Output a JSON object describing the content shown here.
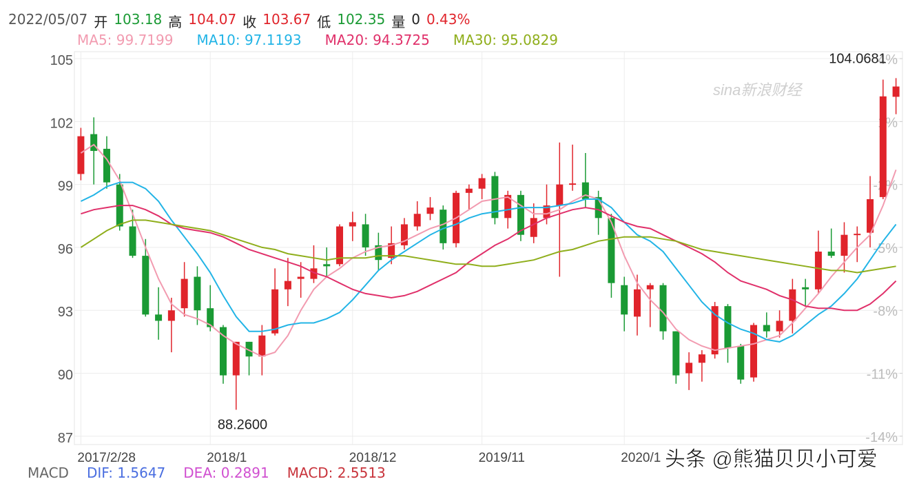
{
  "chart_data": {
    "type": "candlestick",
    "header": [
      {
        "text": "2022/05/07",
        "color": "#555555"
      },
      {
        "text": "开",
        "color": "#222222"
      },
      {
        "text": "103.18",
        "color": "#1a9a34"
      },
      {
        "text": "高",
        "color": "#222222"
      },
      {
        "text": "104.07",
        "color": "#e0242b"
      },
      {
        "text": "收",
        "color": "#222222"
      },
      {
        "text": "103.67",
        "color": "#e0242b"
      },
      {
        "text": "低",
        "color": "#222222"
      },
      {
        "text": "102.35",
        "color": "#1a9a34"
      },
      {
        "text": "量",
        "color": "#222222"
      },
      {
        "text": "0",
        "color": "#222222"
      },
      {
        "text": "0.43%",
        "color": "#e0242b"
      }
    ],
    "categories": [
      "2017/2/28",
      null,
      null,
      null,
      null,
      null,
      null,
      null,
      null,
      null,
      "2018/1",
      null,
      null,
      null,
      null,
      null,
      null,
      null,
      null,
      null,
      null,
      "2018/12",
      null,
      null,
      null,
      null,
      null,
      null,
      null,
      null,
      null,
      "2019/11",
      null,
      null,
      null,
      null,
      null,
      null,
      null,
      null,
      null,
      null,
      "2020/1",
      null,
      null,
      null,
      null,
      null,
      null,
      null,
      null,
      null,
      null,
      null,
      null,
      null,
      null,
      null,
      null,
      null,
      null,
      null,
      null,
      null
    ],
    "up_color": "#e0242b",
    "down_color": "#1a9a34",
    "open": [
      99.5,
      101.4,
      100.7,
      99.0,
      97.0,
      95.6,
      92.8,
      92.5,
      93.1,
      94.6,
      93.1,
      92.2,
      89.9,
      91.5,
      90.8,
      91.9,
      94.0,
      94.5,
      94.5,
      95.2,
      95.2,
      97.0,
      97.1,
      96.1,
      95.5,
      96.1,
      97.0,
      97.6,
      97.8,
      96.2,
      98.6,
      98.8,
      99.4,
      97.4,
      98.5,
      96.5,
      97.4,
      98.0,
      99.0,
      99.1,
      98.4,
      97.4,
      94.2,
      92.7,
      94.0,
      94.2,
      92.0,
      90.0,
      90.5,
      90.9,
      93.2,
      91.3,
      89.8,
      92.3,
      92.0,
      92.5,
      94.1,
      94.0,
      95.8,
      95.6,
      96.6,
      96.7,
      98.4,
      103.18
    ],
    "high": [
      101.7,
      102.2,
      101.3,
      99.5,
      97.8,
      96.4,
      94.1,
      93.6,
      95.3,
      95.1,
      94.2,
      92.3,
      91.5,
      91.5,
      92.3,
      95.0,
      95.5,
      95.3,
      96.1,
      96.0,
      97.1,
      97.7,
      97.6,
      96.7,
      97.0,
      97.4,
      98.2,
      98.4,
      98.0,
      98.7,
      99.0,
      99.5,
      99.6,
      98.7,
      98.7,
      98.1,
      99.0,
      101.0,
      100.9,
      100.5,
      98.7,
      97.6,
      94.6,
      94.7,
      94.3,
      94.3,
      92.0,
      91.0,
      91.1,
      93.4,
      93.3,
      91.4,
      92.4,
      92.9,
      93.0,
      94.5,
      94.5,
      96.8,
      96.9,
      97.2,
      97.0,
      99.4,
      104.0,
      104.07
    ],
    "low": [
      99.2,
      99.0,
      98.8,
      96.8,
      95.5,
      92.7,
      91.6,
      91.0,
      92.7,
      92.3,
      92.0,
      89.5,
      88.26,
      89.9,
      89.9,
      91.8,
      93.2,
      93.6,
      94.3,
      94.6,
      95.1,
      96.3,
      95.6,
      94.9,
      95.2,
      95.9,
      96.8,
      97.3,
      95.9,
      96.0,
      97.8,
      98.3,
      97.1,
      96.9,
      96.3,
      96.2,
      97.1,
      94.6,
      98.7,
      97.9,
      96.6,
      93.6,
      92.0,
      91.8,
      92.2,
      91.6,
      89.5,
      89.2,
      89.6,
      90.7,
      90.5,
      89.5,
      89.6,
      91.7,
      91.7,
      91.9,
      93.2,
      93.8,
      95.5,
      94.8,
      95.3,
      96.0,
      98.3,
      102.35
    ],
    "close": [
      101.3,
      100.6,
      99.1,
      97.0,
      95.6,
      92.8,
      92.5,
      93.0,
      94.5,
      93.0,
      92.2,
      89.9,
      91.5,
      90.8,
      91.8,
      94.0,
      94.4,
      94.6,
      95.0,
      95.1,
      97.0,
      97.2,
      96.0,
      95.4,
      96.2,
      97.1,
      97.6,
      97.9,
      96.2,
      98.6,
      98.8,
      99.3,
      97.4,
      98.5,
      96.6,
      97.4,
      98.0,
      99.0,
      99.05,
      98.3,
      97.4,
      94.3,
      92.8,
      94.0,
      94.2,
      92.0,
      89.9,
      90.5,
      90.9,
      93.2,
      91.2,
      89.7,
      92.3,
      92.0,
      92.5,
      94.0,
      94.0,
      95.8,
      95.6,
      96.6,
      96.65,
      98.3,
      103.2,
      103.67
    ],
    "series": [
      {
        "name": "MA5: 99.7199",
        "color": "#f29bb0",
        "values": [
          100.5,
          100.9,
          100.2,
          99.2,
          97.6,
          96.0,
          94.5,
          93.3,
          92.8,
          92.6,
          92.3,
          91.8,
          91.4,
          91.1,
          90.8,
          91.0,
          91.8,
          93.0,
          94.0,
          94.6,
          95.0,
          95.5,
          95.8,
          96.0,
          96.1,
          96.3,
          96.6,
          96.9,
          97.1,
          97.4,
          97.8,
          98.2,
          98.3,
          98.4,
          98.0,
          97.6,
          97.6,
          97.8,
          98.2,
          98.5,
          98.3,
          97.2,
          95.6,
          94.3,
          93.5,
          92.9,
          92.1,
          91.6,
          91.3,
          91.1,
          91.2,
          91.3,
          91.4,
          91.6,
          91.8,
          92.4,
          93.1,
          93.8,
          94.6,
          95.3,
          96.0,
          96.6,
          98.0,
          99.7
        ]
      },
      {
        "name": "MA10: 97.1193",
        "color": "#22b4e6",
        "values": [
          98.2,
          98.5,
          98.9,
          99.1,
          99.1,
          98.8,
          98.2,
          97.3,
          96.5,
          95.7,
          94.8,
          93.7,
          92.7,
          92.0,
          92.0,
          92.1,
          92.3,
          92.4,
          92.4,
          92.6,
          92.9,
          93.5,
          94.2,
          94.9,
          95.4,
          95.8,
          96.2,
          96.6,
          96.9,
          97.1,
          97.4,
          97.6,
          97.7,
          97.8,
          97.9,
          97.9,
          97.9,
          98.0,
          98.1,
          98.3,
          98.3,
          97.9,
          97.2,
          96.6,
          96.3,
          95.8,
          95.0,
          94.2,
          93.4,
          92.8,
          92.4,
          92.1,
          91.9,
          91.6,
          91.5,
          91.8,
          92.3,
          92.8,
          93.2,
          93.8,
          94.5,
          95.4,
          96.3,
          97.1
        ]
      },
      {
        "name": "MA20: 94.3725",
        "color": "#e0306a",
        "values": [
          97.6,
          97.8,
          97.9,
          98.0,
          98.0,
          97.8,
          97.5,
          97.1,
          96.9,
          96.8,
          96.7,
          96.5,
          96.2,
          95.9,
          95.7,
          95.5,
          95.3,
          95.1,
          94.8,
          94.6,
          94.3,
          94.0,
          93.8,
          93.7,
          93.6,
          93.7,
          93.9,
          94.2,
          94.5,
          94.8,
          95.3,
          95.7,
          96.1,
          96.4,
          96.8,
          97.1,
          97.4,
          97.6,
          97.8,
          97.9,
          97.8,
          97.5,
          97.2,
          97.0,
          96.9,
          96.6,
          96.3,
          96.0,
          95.7,
          95.3,
          94.8,
          94.4,
          94.2,
          94.0,
          93.7,
          93.5,
          93.2,
          93.1,
          93.1,
          93.0,
          93.0,
          93.3,
          93.8,
          94.4
        ]
      },
      {
        "name": "MA30: 95.0829",
        "color": "#8fae1b",
        "values": [
          96.0,
          96.4,
          96.8,
          97.1,
          97.3,
          97.3,
          97.2,
          97.1,
          97.0,
          96.9,
          96.8,
          96.6,
          96.4,
          96.2,
          96.0,
          95.9,
          95.7,
          95.6,
          95.5,
          95.4,
          95.5,
          95.5,
          95.5,
          95.6,
          95.6,
          95.6,
          95.5,
          95.4,
          95.3,
          95.2,
          95.2,
          95.1,
          95.1,
          95.2,
          95.3,
          95.4,
          95.6,
          95.8,
          95.9,
          96.1,
          96.3,
          96.4,
          96.5,
          96.5,
          96.5,
          96.4,
          96.3,
          96.1,
          95.9,
          95.8,
          95.7,
          95.6,
          95.5,
          95.4,
          95.3,
          95.2,
          95.1,
          95.0,
          94.9,
          94.9,
          94.8,
          94.9,
          95.0,
          95.1
        ]
      }
    ],
    "ylim": [
      86.6,
      105.33
    ],
    "yticks": [
      87,
      90,
      93,
      96,
      99,
      102,
      105
    ],
    "y2lim": [
      -14.4,
      4.33
    ],
    "y2ticks": [
      {
        "value": -14,
        "label": "-14%"
      },
      {
        "value": -11,
        "label": "-11%"
      },
      {
        "value": -8,
        "label": "-8%"
      },
      {
        "value": -5,
        "label": "-5%"
      },
      {
        "value": -2,
        "label": "-2%"
      },
      {
        "value": 1,
        "label": "1%"
      },
      {
        "value": 4,
        "label": "4%"
      }
    ],
    "grid": true,
    "annotations": [
      {
        "value": 104.0681,
        "label": "104.0681"
      },
      {
        "value": 88.26,
        "label": "88.2600"
      }
    ],
    "macd": [
      {
        "text": "MACD",
        "color": "#666666"
      },
      {
        "text": "DIF: 1.5647",
        "color": "#4a6ee0"
      },
      {
        "text": "DEA: 0.2891",
        "color": "#d04fd0"
      },
      {
        "text": "MACD: 2.5513",
        "color": "#c8333b"
      }
    ],
    "watermarks": [
      "sina新浪财经",
      "头条 @熊猫贝贝小可爱"
    ]
  }
}
